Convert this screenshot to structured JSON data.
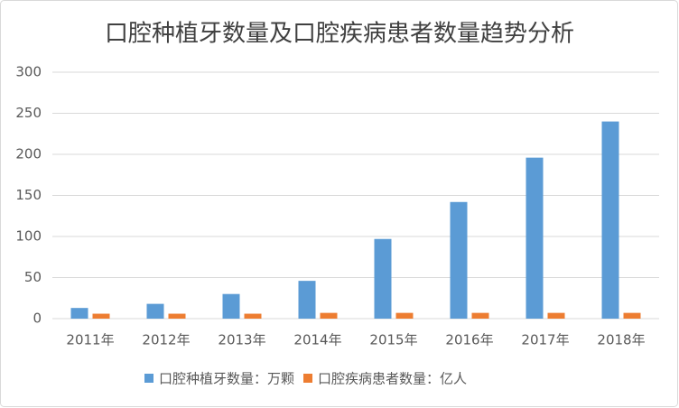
{
  "chart_data": {
    "type": "bar",
    "title": "口腔种植牙数量及口腔疾病患者数量趋势分析",
    "categories": [
      "2011年",
      "2012年",
      "2013年",
      "2014年",
      "2015年",
      "2016年",
      "2017年",
      "2018年"
    ],
    "series": [
      {
        "name": "口腔种植牙数量：万颗",
        "color": "#5b9bd5",
        "values": [
          13,
          18,
          30,
          46,
          97,
          142,
          196,
          240
        ]
      },
      {
        "name": "口腔疾病患者数量：亿人",
        "color": "#ed7d31",
        "values": [
          6,
          6,
          6,
          7,
          7,
          7,
          7,
          7
        ]
      }
    ],
    "ylim": [
      0,
      300
    ],
    "yticks": [
      0,
      50,
      100,
      150,
      200,
      250,
      300
    ],
    "grid": true,
    "legend": "bottom"
  }
}
